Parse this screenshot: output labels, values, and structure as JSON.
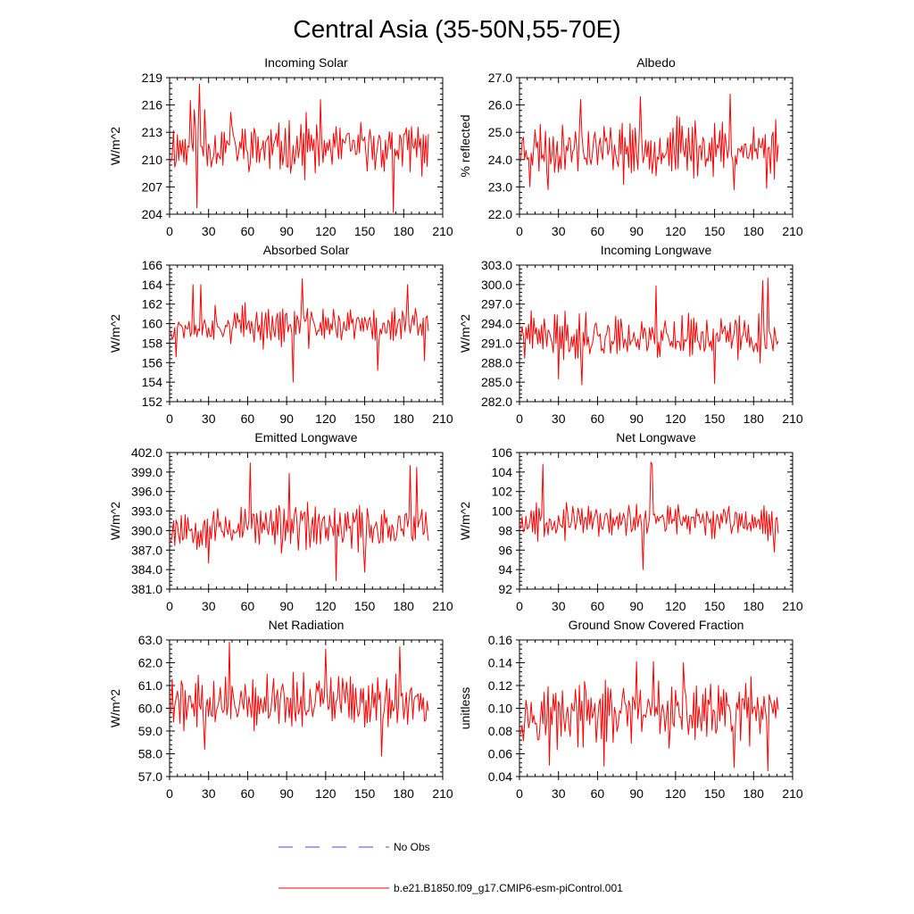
{
  "figure": {
    "title": "Central Asia (35-50N,55-70E)"
  },
  "legend": [
    {
      "label": "No Obs",
      "color": "#4a4ad0",
      "style": "dashed"
    },
    {
      "label": "b.e21.B1850.f09_g17.CMIP6-esm-piControl.001",
      "color": "#ff0000",
      "style": "solid"
    }
  ],
  "chart_data": [
    {
      "type": "line",
      "title": "Incoming Solar",
      "ylabel": "W/m^2",
      "ylim": [
        204,
        219
      ],
      "yticks": [
        204,
        207,
        210,
        213,
        216,
        219
      ],
      "ytick_labels": [
        "204",
        "207",
        "210",
        "213",
        "216",
        "219"
      ],
      "xlim": [
        0,
        210
      ],
      "xticks": [
        0,
        30,
        60,
        90,
        120,
        150,
        180,
        210
      ],
      "xtick_labels": [
        "0",
        "30",
        "60",
        "90",
        "120",
        "150",
        "180",
        "210"
      ],
      "series": [
        {
          "name": "b.e21.B1850.f09_g17.CMIP6-esm-piControl.001",
          "color": "#ff0000",
          "start": 1,
          "mean": 211.3,
          "amplitude": 2.2,
          "seed": 11,
          "peaks": [
            [
              16,
              216.5
            ],
            [
              19,
              215.5
            ],
            [
              21,
              204.7
            ],
            [
              23,
              218.3
            ],
            [
              27,
              215.5
            ],
            [
              47,
              215.2
            ],
            [
              105,
              215.2
            ],
            [
              116,
              216.6
            ],
            [
              172,
              204.2
            ]
          ]
        }
      ]
    },
    {
      "type": "line",
      "title": "Albedo",
      "ylabel": "% reflected",
      "ylim": [
        22.0,
        27.0
      ],
      "yticks": [
        22,
        23,
        24,
        25,
        26,
        27
      ],
      "ytick_labels": [
        "22.0",
        "23.0",
        "24.0",
        "25.0",
        "26.0",
        "27.0"
      ],
      "xlim": [
        0,
        210
      ],
      "xticks": [
        0,
        30,
        60,
        90,
        120,
        150,
        180,
        210
      ],
      "xtick_labels": [
        "0",
        "30",
        "60",
        "90",
        "120",
        "150",
        "180",
        "210"
      ],
      "series": [
        {
          "name": "b.e21.B1850.f09_g17.CMIP6-esm-piControl.001",
          "color": "#ff0000",
          "start": 1,
          "mean": 24.4,
          "amplitude": 0.75,
          "seed": 23,
          "peaks": [
            [
              8,
              23.0
            ],
            [
              22,
              22.9
            ],
            [
              47,
              26.2
            ],
            [
              93,
              26.3
            ],
            [
              162,
              26.4
            ],
            [
              165,
              22.9
            ],
            [
              190,
              22.95
            ]
          ]
        }
      ]
    },
    {
      "type": "line",
      "title": "Absorbed Solar",
      "ylabel": "W/m^2",
      "ylim": [
        152,
        166
      ],
      "yticks": [
        152,
        154,
        156,
        158,
        160,
        162,
        164,
        166
      ],
      "ytick_labels": [
        "152",
        "154",
        "156",
        "158",
        "160",
        "162",
        "164",
        "166"
      ],
      "xlim": [
        0,
        210
      ],
      "xticks": [
        0,
        30,
        60,
        90,
        120,
        150,
        180,
        210
      ],
      "xtick_labels": [
        "0",
        "30",
        "60",
        "90",
        "120",
        "150",
        "180",
        "210"
      ],
      "series": [
        {
          "name": "b.e21.B1850.f09_g17.CMIP6-esm-piControl.001",
          "color": "#ff0000",
          "start": 1,
          "mean": 159.8,
          "amplitude": 1.5,
          "seed": 37,
          "peaks": [
            [
              5,
              156.6
            ],
            [
              18,
              164.0
            ],
            [
              24,
              164.0
            ],
            [
              95,
              154.0
            ],
            [
              102,
              164.6
            ],
            [
              160,
              155.2
            ],
            [
              183,
              164.0
            ],
            [
              196,
              156.2
            ]
          ]
        }
      ]
    },
    {
      "type": "line",
      "title": "Incoming Longwave",
      "ylabel": "W/m^2",
      "ylim": [
        282.0,
        303.0
      ],
      "yticks": [
        282,
        285,
        288,
        291,
        294,
        297,
        300,
        303
      ],
      "ytick_labels": [
        "282.0",
        "285.0",
        "288.0",
        "291.0",
        "294.0",
        "297.0",
        "300.0",
        "303.0"
      ],
      "xlim": [
        0,
        210
      ],
      "xticks": [
        0,
        30,
        60,
        90,
        120,
        150,
        180,
        210
      ],
      "xtick_labels": [
        "0",
        "30",
        "60",
        "90",
        "120",
        "150",
        "180",
        "210"
      ],
      "series": [
        {
          "name": "b.e21.B1850.f09_g17.CMIP6-esm-piControl.001",
          "color": "#ff0000",
          "start": 1,
          "mean": 292.0,
          "amplitude": 2.7,
          "seed": 41,
          "peaks": [
            [
              30,
              285.5
            ],
            [
              48,
              284.6
            ],
            [
              105,
              299.8
            ],
            [
              150,
              284.8
            ],
            [
              187,
              300.6
            ],
            [
              191,
              301.0
            ]
          ]
        }
      ]
    },
    {
      "type": "line",
      "title": "Emitted Longwave",
      "ylabel": "W/m^2",
      "ylim": [
        381.0,
        402.0
      ],
      "yticks": [
        381,
        384,
        387,
        390,
        393,
        396,
        399,
        402
      ],
      "ytick_labels": [
        "381.0",
        "384.0",
        "387.0",
        "390.0",
        "393.0",
        "396.0",
        "399.0",
        "402.0"
      ],
      "xlim": [
        0,
        210
      ],
      "xticks": [
        0,
        30,
        60,
        90,
        120,
        150,
        180,
        210
      ],
      "xtick_labels": [
        "0",
        "30",
        "60",
        "90",
        "120",
        "150",
        "180",
        "210"
      ],
      "series": [
        {
          "name": "b.e21.B1850.f09_g17.CMIP6-esm-piControl.001",
          "color": "#ff0000",
          "start": 1,
          "mean": 390.5,
          "amplitude": 2.8,
          "seed": 53,
          "peaks": [
            [
              30,
              385.0
            ],
            [
              62,
              400.4
            ],
            [
              92,
              398.8
            ],
            [
              128,
              382.3
            ],
            [
              150,
              383.6
            ],
            [
              185,
              400.0
            ],
            [
              190,
              399.7
            ]
          ]
        }
      ]
    },
    {
      "type": "line",
      "title": "Net Longwave",
      "ylabel": "W/m^2",
      "ylim": [
        92,
        106
      ],
      "yticks": [
        92,
        94,
        96,
        98,
        100,
        102,
        104,
        106
      ],
      "ytick_labels": [
        "92",
        "94",
        "96",
        "98",
        "100",
        "102",
        "104",
        "106"
      ],
      "xlim": [
        0,
        210
      ],
      "xticks": [
        0,
        30,
        60,
        90,
        120,
        150,
        180,
        210
      ],
      "xtick_labels": [
        "0",
        "30",
        "60",
        "90",
        "120",
        "150",
        "180",
        "210"
      ],
      "series": [
        {
          "name": "b.e21.B1850.f09_g17.CMIP6-esm-piControl.001",
          "color": "#ff0000",
          "start": 1,
          "mean": 99.0,
          "amplitude": 1.3,
          "seed": 67,
          "peaks": [
            [
              18,
              104.8
            ],
            [
              95,
              94.0
            ],
            [
              101,
              105.0
            ],
            [
              102,
              104.8
            ],
            [
              196,
              95.8
            ]
          ]
        }
      ]
    },
    {
      "type": "line",
      "title": "Net Radiation",
      "ylabel": "W/m^2",
      "ylim": [
        57.0,
        63.0
      ],
      "yticks": [
        57,
        58,
        59,
        60,
        61,
        62,
        63
      ],
      "ytick_labels": [
        "57.0",
        "58.0",
        "59.0",
        "60.0",
        "61.0",
        "62.0",
        "63.0"
      ],
      "xlim": [
        0,
        210
      ],
      "xticks": [
        0,
        30,
        60,
        90,
        120,
        150,
        180,
        210
      ],
      "xtick_labels": [
        "0",
        "30",
        "60",
        "90",
        "120",
        "150",
        "180",
        "210"
      ],
      "series": [
        {
          "name": "b.e21.B1850.f09_g17.CMIP6-esm-piControl.001",
          "color": "#ff0000",
          "start": 1,
          "mean": 60.3,
          "amplitude": 0.9,
          "seed": 79,
          "peaks": [
            [
              3,
              59.4
            ],
            [
              27,
              58.2
            ],
            [
              46,
              62.9
            ],
            [
              120,
              62.6
            ],
            [
              163,
              57.9
            ],
            [
              177,
              62.7
            ]
          ]
        }
      ]
    },
    {
      "type": "line",
      "title": "Ground Snow Covered Fraction",
      "ylabel": "unitless",
      "ylim": [
        0.04,
        0.16
      ],
      "yticks": [
        0.04,
        0.06,
        0.08,
        0.1,
        0.12,
        0.14,
        0.16
      ],
      "ytick_labels": [
        "0.04",
        "0.06",
        "0.08",
        "0.10",
        "0.12",
        "0.14",
        "0.16"
      ],
      "xlim": [
        0,
        210
      ],
      "xticks": [
        0,
        30,
        60,
        90,
        120,
        150,
        180,
        210
      ],
      "xtick_labels": [
        "0",
        "30",
        "60",
        "90",
        "120",
        "150",
        "180",
        "210"
      ],
      "series": [
        {
          "name": "b.e21.B1850.f09_g17.CMIP6-esm-piControl.001",
          "color": "#ff0000",
          "start": 1,
          "mean": 0.095,
          "amplitude": 0.022,
          "seed": 97,
          "peaks": [
            [
              23,
              0.05
            ],
            [
              65,
              0.049
            ],
            [
              90,
              0.141
            ],
            [
              103,
              0.141
            ],
            [
              126,
              0.14
            ],
            [
              165,
              0.048
            ],
            [
              191,
              0.045
            ]
          ]
        }
      ]
    }
  ]
}
